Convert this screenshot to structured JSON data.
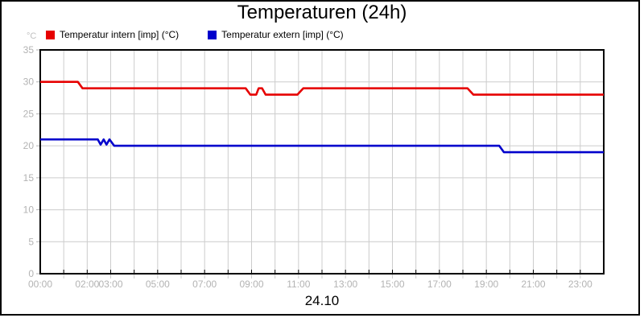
{
  "header": {
    "title": "Temperaturen (24h)"
  },
  "legend": {
    "unit_label": "°C",
    "items": [
      {
        "label": "Temperatur intern [imp] (°C)",
        "color": "#e60000"
      },
      {
        "label": "Temperatur extern [imp] (°C)",
        "color": "#0000cc"
      }
    ]
  },
  "footer": {
    "date_label": "24.10"
  },
  "chart_data": {
    "type": "line",
    "title": "Temperaturen (24h)",
    "xlabel": "24.10",
    "ylabel": "°C",
    "grid": true,
    "legend_position": "top-left",
    "colors": {
      "gridline": "#cccccc",
      "axis_border": "#000000",
      "axis_tick": "#000000",
      "axis_label": "#b3b3b3"
    },
    "x_axis": {
      "unit": "time",
      "min_hour": 0,
      "max_hour": 24,
      "gridline_interval_hours": 1,
      "labels": [
        {
          "text": "00:00",
          "hour": 0
        },
        {
          "text": "02:00",
          "hour": 2
        },
        {
          "text": "03:00",
          "hour": 3
        },
        {
          "text": "05:00",
          "hour": 5
        },
        {
          "text": "07:00",
          "hour": 7
        },
        {
          "text": "09:00",
          "hour": 9
        },
        {
          "text": "11:00",
          "hour": 11
        },
        {
          "text": "13:00",
          "hour": 13
        },
        {
          "text": "15:00",
          "hour": 15
        },
        {
          "text": "17:00",
          "hour": 17
        },
        {
          "text": "19:00",
          "hour": 19
        },
        {
          "text": "21:00",
          "hour": 21
        },
        {
          "text": "23:00",
          "hour": 23
        }
      ]
    },
    "y_axis": {
      "unit": "°C",
      "min": 0,
      "max": 35,
      "gridline_interval": 5,
      "tick_labels": [
        0,
        5,
        10,
        15,
        20,
        25,
        30,
        35
      ]
    },
    "series": [
      {
        "name": "Temperatur intern [imp] (°C)",
        "color": "#e60000",
        "points": [
          [
            0,
            30
          ],
          [
            1.6,
            30
          ],
          [
            1.8,
            29
          ],
          [
            8.75,
            29
          ],
          [
            8.95,
            28
          ],
          [
            9.2,
            28
          ],
          [
            9.3,
            29
          ],
          [
            9.45,
            29
          ],
          [
            9.6,
            28
          ],
          [
            10.95,
            28
          ],
          [
            11.2,
            29
          ],
          [
            18.2,
            29
          ],
          [
            18.45,
            28
          ],
          [
            24,
            28
          ]
        ]
      },
      {
        "name": "Temperatur extern [imp] (°C)",
        "color": "#0000cc",
        "points": [
          [
            0,
            21
          ],
          [
            2.45,
            21
          ],
          [
            2.57,
            20.2
          ],
          [
            2.7,
            21
          ],
          [
            2.82,
            20.2
          ],
          [
            2.95,
            21
          ],
          [
            3.15,
            20
          ],
          [
            19.55,
            20
          ],
          [
            19.75,
            19
          ],
          [
            24,
            19
          ]
        ]
      }
    ]
  }
}
